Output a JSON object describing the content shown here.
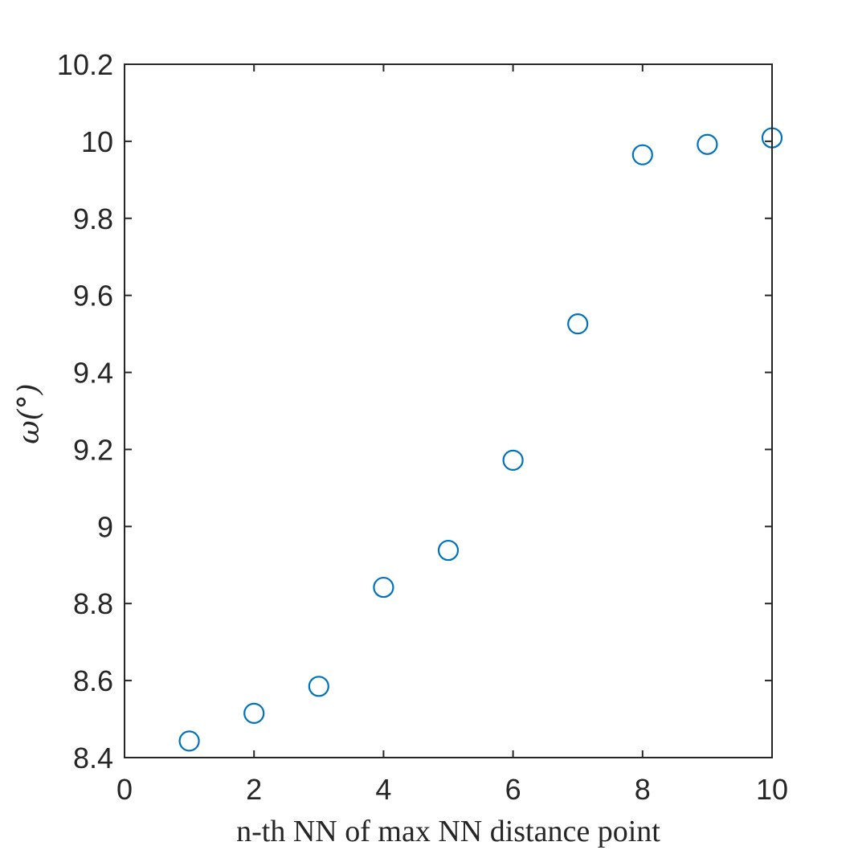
{
  "chart_data": {
    "type": "scatter",
    "title": "",
    "xlabel": "n-th NN of max NN distance point",
    "ylabel": "ω(°)",
    "xlim": [
      0,
      10
    ],
    "ylim": [
      8.4,
      10.2
    ],
    "xticks": [
      0,
      2,
      4,
      6,
      8,
      10
    ],
    "yticks": [
      8.4,
      8.6,
      8.8,
      9.0,
      9.2,
      9.4,
      9.6,
      9.8,
      10.0,
      10.2
    ],
    "xtick_labels": [
      "0",
      "2",
      "4",
      "6",
      "8",
      "10"
    ],
    "ytick_labels": [
      "8.4",
      "8.6",
      "8.8",
      "9",
      "9.2",
      "9.4",
      "9.6",
      "9.8",
      "10",
      "10.2"
    ],
    "grid": false,
    "marker": "open-circle",
    "marker_color": "#0072BD",
    "axis_color": "#262626",
    "series": [
      {
        "x": [
          1,
          2,
          3,
          4,
          5,
          6,
          7,
          8,
          9,
          10
        ],
        "y": [
          8.443,
          8.515,
          8.585,
          8.842,
          8.938,
          9.172,
          9.526,
          9.965,
          9.992,
          10.009
        ]
      }
    ]
  }
}
